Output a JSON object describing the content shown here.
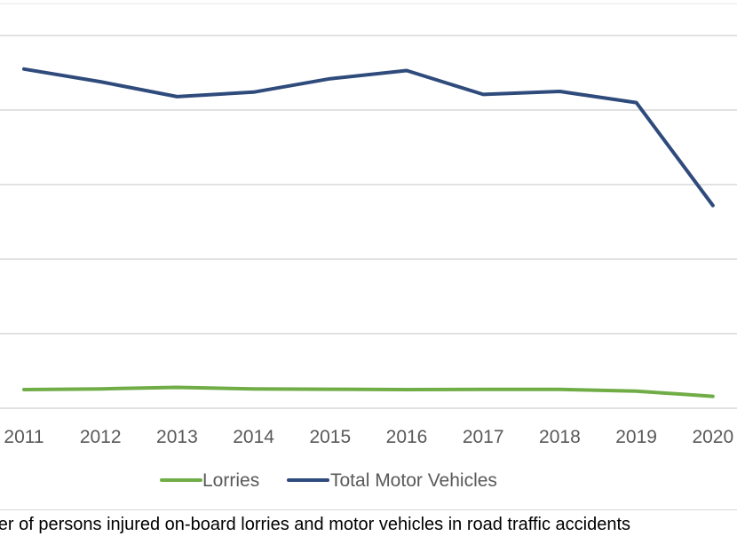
{
  "chart_data": {
    "type": "line",
    "categories": [
      "2011",
      "2012",
      "2013",
      "2014",
      "2015",
      "2016",
      "2017",
      "2018",
      "2019",
      "2020"
    ],
    "series": [
      {
        "name": "Lorries",
        "color": "#70AD47",
        "values": [
          2.5,
          2.6,
          2.8,
          2.6,
          2.55,
          2.5,
          2.52,
          2.52,
          2.3,
          1.6
        ]
      },
      {
        "name": "Total Motor Vehicles",
        "color": "#2F4B7C",
        "values": [
          45.5,
          43.8,
          41.8,
          42.4,
          44.2,
          45.3,
          42.1,
          42.5,
          41.0,
          27.2
        ]
      }
    ],
    "ylim": [
      0,
      50
    ],
    "grid": true,
    "legend": "bottom",
    "caption": "mber of persons injured on-board lorries and motor vehicles in road traffic accidents"
  }
}
